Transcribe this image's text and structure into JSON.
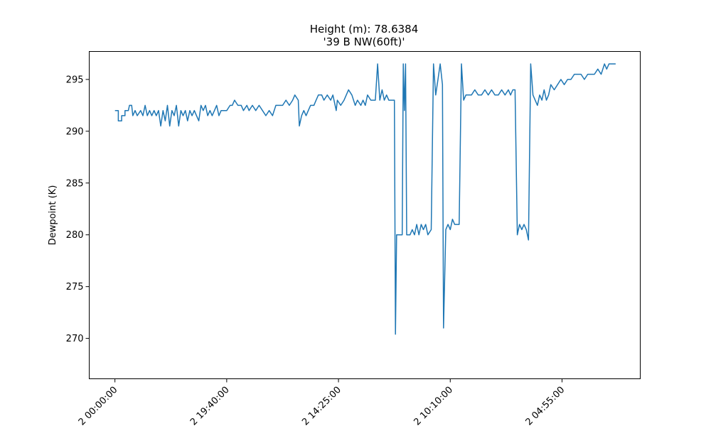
{
  "chart_data": {
    "type": "line",
    "title": "Height (m): 78.6384",
    "subtitle": "'39 B NW(60ft)'",
    "xlabel": "",
    "ylabel": "Dewpoint (K)",
    "ylim": [
      266.1,
      297.7
    ],
    "xlim": [
      -2.3,
      47.0
    ],
    "x_ticks": [
      {
        "x": 0,
        "label": "2 00:00:00"
      },
      {
        "x": 10,
        "label": "2 19:40:00"
      },
      {
        "x": 20,
        "label": "2 14:25:00"
      },
      {
        "x": 30,
        "label": "2 10:10:00"
      },
      {
        "x": 40,
        "label": "2 04:55:00"
      }
    ],
    "y_ticks": [
      270,
      275,
      280,
      285,
      290,
      295
    ],
    "grid": false,
    "series": [
      {
        "color": "#1f77b4",
        "segments": [
          [
            [
              0,
              292.0
            ],
            [
              0.3,
              292.0
            ],
            [
              0.3,
              291.0
            ],
            [
              0.6,
              291.0
            ],
            [
              0.6,
              291.5
            ],
            [
              0.9,
              291.5
            ],
            [
              0.9,
              292.0
            ],
            [
              1.2,
              292.0
            ],
            [
              1.3,
              292.5
            ],
            [
              1.5,
              292.5
            ],
            [
              1.6,
              291.5
            ],
            [
              1.8,
              292.0
            ],
            [
              2.0,
              291.5
            ],
            [
              2.3,
              292.0
            ],
            [
              2.5,
              291.5
            ],
            [
              2.7,
              292.5
            ],
            [
              2.9,
              291.5
            ],
            [
              3.1,
              292.0
            ],
            [
              3.3,
              291.5
            ],
            [
              3.5,
              292.0
            ],
            [
              3.7,
              291.5
            ],
            [
              3.9,
              292.0
            ],
            [
              4.1,
              290.5
            ],
            [
              4.3,
              292.0
            ],
            [
              4.5,
              291.0
            ],
            [
              4.7,
              292.5
            ],
            [
              4.9,
              290.5
            ],
            [
              5.1,
              292.0
            ],
            [
              5.3,
              291.5
            ],
            [
              5.5,
              292.5
            ],
            [
              5.7,
              290.5
            ],
            [
              5.9,
              292.0
            ],
            [
              6.1,
              291.5
            ],
            [
              6.3,
              292.0
            ],
            [
              6.5,
              291.0
            ],
            [
              6.7,
              292.0
            ],
            [
              6.9,
              291.5
            ],
            [
              7.1,
              292.0
            ],
            [
              7.3,
              291.5
            ],
            [
              7.5,
              291.0
            ],
            [
              7.7,
              292.5
            ],
            [
              7.9,
              292.0
            ],
            [
              8.1,
              292.5
            ],
            [
              8.3,
              291.5
            ],
            [
              8.5,
              292.0
            ],
            [
              8.7,
              291.5
            ],
            [
              8.9,
              292.0
            ],
            [
              9.1,
              292.5
            ],
            [
              9.3,
              291.5
            ],
            [
              9.5,
              292.0
            ],
            [
              9.8,
              292.0
            ],
            [
              10.0,
              292.0
            ],
            [
              10.3,
              292.5
            ],
            [
              10.5,
              292.5
            ],
            [
              10.7,
              293.0
            ],
            [
              11.0,
              292.5
            ],
            [
              11.3,
              292.5
            ],
            [
              11.5,
              292.0
            ],
            [
              11.8,
              292.5
            ],
            [
              12.0,
              292.0
            ],
            [
              12.3,
              292.5
            ],
            [
              12.6,
              292.0
            ],
            [
              12.9,
              292.5
            ],
            [
              13.2,
              292.0
            ],
            [
              13.5,
              291.5
            ],
            [
              13.8,
              292.0
            ],
            [
              14.1,
              291.5
            ],
            [
              14.4,
              292.5
            ],
            [
              14.7,
              292.5
            ],
            [
              15.0,
              292.5
            ],
            [
              15.3,
              293.0
            ],
            [
              15.6,
              292.5
            ],
            [
              15.9,
              293.0
            ],
            [
              16.1,
              293.5
            ],
            [
              16.4,
              293.0
            ],
            [
              16.5,
              290.5
            ],
            [
              16.7,
              291.5
            ],
            [
              16.9,
              292.0
            ],
            [
              17.1,
              291.5
            ],
            [
              17.3,
              292.0
            ],
            [
              17.5,
              292.5
            ],
            [
              17.8,
              292.5
            ],
            [
              18.0,
              293.0
            ],
            [
              18.2,
              293.5
            ],
            [
              18.5,
              293.5
            ],
            [
              18.7,
              293.0
            ],
            [
              19.0,
              293.5
            ],
            [
              19.3,
              293.0
            ],
            [
              19.5,
              293.5
            ],
            [
              19.8,
              292.0
            ],
            [
              19.9,
              293.0
            ],
            [
              20.2,
              292.5
            ],
            [
              20.5,
              293.0
            ],
            [
              20.9,
              294.0
            ],
            [
              21.2,
              293.5
            ],
            [
              21.5,
              292.5
            ],
            [
              21.7,
              293.0
            ],
            [
              22.0,
              292.5
            ],
            [
              22.2,
              293.0
            ],
            [
              22.4,
              292.5
            ],
            [
              22.6,
              293.5
            ],
            [
              22.9,
              293.0
            ],
            [
              23.1,
              293.0
            ],
            [
              23.3,
              293.0
            ],
            [
              23.5,
              296.5
            ],
            [
              23.7,
              293.0
            ],
            [
              23.9,
              294.0
            ],
            [
              24.1,
              293.0
            ],
            [
              24.3,
              293.5
            ],
            [
              24.5,
              293.0
            ],
            [
              24.7,
              293.0
            ],
            [
              24.9,
              293.0
            ],
            [
              25.0,
              293.0
            ],
            [
              25.1,
              270.4
            ],
            [
              25.2,
              280.0
            ],
            [
              25.4,
              280.0
            ],
            [
              25.7,
              280.0
            ],
            [
              25.8,
              296.5
            ],
            [
              25.9,
              292.0
            ],
            [
              26.0,
              296.5
            ],
            [
              26.1,
              280.0
            ],
            [
              26.4,
              280.0
            ],
            [
              26.6,
              280.5
            ],
            [
              26.8,
              280.0
            ],
            [
              27.0,
              281.0
            ],
            [
              27.2,
              280.0
            ],
            [
              27.4,
              281.0
            ],
            [
              27.6,
              280.5
            ],
            [
              27.8,
              281.0
            ],
            [
              28.0,
              280.0
            ],
            [
              28.3,
              280.5
            ],
            [
              28.5,
              296.5
            ],
            [
              28.7,
              293.5
            ],
            [
              28.9,
              295.0
            ],
            [
              29.1,
              296.5
            ],
            [
              29.3,
              294.5
            ],
            [
              29.4,
              271.0
            ],
            [
              29.6,
              280.5
            ],
            [
              29.8,
              281.0
            ],
            [
              30.0,
              280.5
            ],
            [
              30.2,
              281.5
            ],
            [
              30.4,
              281.0
            ],
            [
              30.6,
              281.0
            ],
            [
              30.8,
              281.0
            ],
            [
              31.0,
              296.5
            ],
            [
              31.2,
              293.0
            ],
            [
              31.4,
              293.5
            ],
            [
              31.6,
              293.5
            ],
            [
              31.9,
              293.5
            ],
            [
              32.2,
              294.0
            ],
            [
              32.5,
              293.5
            ],
            [
              32.8,
              293.5
            ],
            [
              33.1,
              294.0
            ],
            [
              33.4,
              293.5
            ],
            [
              33.7,
              294.0
            ],
            [
              34.0,
              293.5
            ],
            [
              34.3,
              293.5
            ],
            [
              34.6,
              294.0
            ],
            [
              34.9,
              293.5
            ],
            [
              35.2,
              294.0
            ],
            [
              35.4,
              293.5
            ],
            [
              35.6,
              294.0
            ],
            [
              35.8,
              294.0
            ],
            [
              36.0,
              280.0
            ],
            [
              36.2,
              281.0
            ],
            [
              36.4,
              280.5
            ],
            [
              36.6,
              281.0
            ],
            [
              36.8,
              280.5
            ],
            [
              37.0,
              279.5
            ],
            [
              37.2,
              296.5
            ],
            [
              37.4,
              293.5
            ],
            [
              37.6,
              293.0
            ],
            [
              37.8,
              292.5
            ],
            [
              38.0,
              293.5
            ],
            [
              38.2,
              293.0
            ],
            [
              38.4,
              294.0
            ],
            [
              38.6,
              293.0
            ],
            [
              38.8,
              293.5
            ],
            [
              39.0,
              294.5
            ],
            [
              39.3,
              294.0
            ],
            [
              39.6,
              294.5
            ],
            [
              39.9,
              295.0
            ],
            [
              40.2,
              294.5
            ],
            [
              40.5,
              295.0
            ],
            [
              40.8,
              295.0
            ],
            [
              41.1,
              295.5
            ],
            [
              41.4,
              295.5
            ],
            [
              41.7,
              295.5
            ],
            [
              42.0,
              295.0
            ],
            [
              42.3,
              295.5
            ],
            [
              42.6,
              295.5
            ],
            [
              42.9,
              295.5
            ],
            [
              43.2,
              296.0
            ],
            [
              43.5,
              295.5
            ],
            [
              43.8,
              296.5
            ],
            [
              44.0,
              296.0
            ],
            [
              44.2,
              296.5
            ],
            [
              44.4,
              296.5
            ],
            [
              44.6,
              296.5
            ],
            [
              44.8,
              296.5
            ]
          ]
        ]
      }
    ]
  }
}
